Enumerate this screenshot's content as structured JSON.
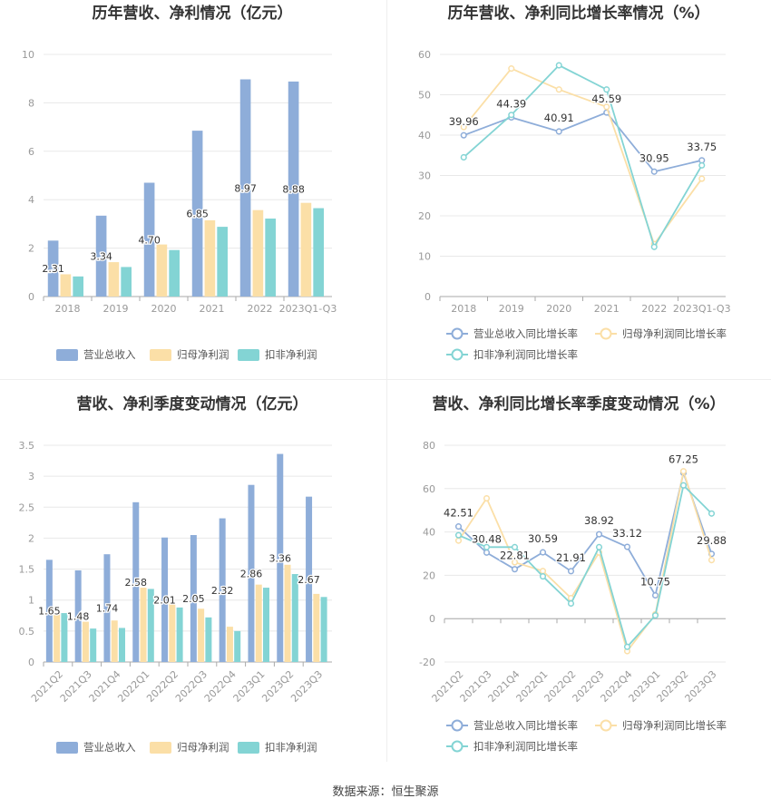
{
  "colors": {
    "revenue": "#8eadd9",
    "net_profit": "#fbdfa7",
    "deducted_profit": "#83d4d4",
    "grid": "#e8e8e8",
    "axis": "#999999",
    "text": "#333333"
  },
  "footer": "数据来源：恒生聚源",
  "chart_data": [
    {
      "type": "bar",
      "title": "历年营收、净利情况（亿元）",
      "categories": [
        "2018",
        "2019",
        "2020",
        "2021",
        "2022",
        "2023Q1-Q3"
      ],
      "ylim": [
        0,
        10
      ],
      "yticks": [
        0,
        2,
        4,
        6,
        8,
        10
      ],
      "series": [
        {
          "name": "营业总收入",
          "values": [
            2.31,
            3.34,
            4.7,
            6.85,
            8.97,
            8.88
          ],
          "show_labels": true
        },
        {
          "name": "归母净利润",
          "values": [
            0.92,
            1.42,
            2.15,
            3.15,
            3.57,
            3.87
          ],
          "show_labels": false
        },
        {
          "name": "扣非净利润",
          "values": [
            0.83,
            1.22,
            1.92,
            2.88,
            3.22,
            3.65
          ],
          "show_labels": false
        }
      ],
      "legend": "bottom"
    },
    {
      "type": "line",
      "title": "历年营收、净利同比增长率情况（%）",
      "categories": [
        "2018",
        "2019",
        "2020",
        "2021",
        "2022",
        "2023Q1-Q3"
      ],
      "ylim": [
        0,
        60
      ],
      "yticks": [
        0,
        10,
        20,
        30,
        40,
        50,
        60
      ],
      "series": [
        {
          "name": "营业总收入同比增长率",
          "values": [
            39.96,
            44.39,
            40.91,
            45.59,
            30.95,
            33.75
          ],
          "show_labels": true
        },
        {
          "name": "归母净利润同比增长率",
          "values": [
            42.0,
            56.5,
            51.3,
            47.0,
            13.0,
            29.2
          ],
          "show_labels": false
        },
        {
          "name": "扣非净利润同比增长率",
          "values": [
            34.5,
            45.0,
            57.3,
            51.3,
            12.3,
            32.5
          ],
          "show_labels": false
        }
      ],
      "legend": "bottom"
    },
    {
      "type": "bar",
      "title": "营收、净利季度变动情况（亿元）",
      "categories": [
        "2021Q2",
        "2021Q3",
        "2021Q4",
        "2022Q1",
        "2022Q2",
        "2022Q3",
        "2022Q4",
        "2023Q1",
        "2023Q2",
        "2023Q3"
      ],
      "ylim": [
        0,
        3.5
      ],
      "yticks": [
        0,
        0.5,
        1,
        1.5,
        2,
        2.5,
        3,
        3.5
      ],
      "series": [
        {
          "name": "营业总收入",
          "values": [
            1.65,
            1.48,
            1.74,
            2.58,
            2.01,
            2.05,
            2.32,
            2.86,
            3.36,
            2.67
          ],
          "show_labels": true
        },
        {
          "name": "归母净利润",
          "values": [
            0.8,
            0.65,
            0.67,
            1.2,
            0.95,
            0.86,
            0.57,
            1.25,
            1.57,
            1.1
          ],
          "show_labels": false
        },
        {
          "name": "扣非净利润",
          "values": [
            0.79,
            0.54,
            0.55,
            1.18,
            0.88,
            0.72,
            0.5,
            1.2,
            1.42,
            1.05
          ],
          "show_labels": false
        }
      ],
      "legend": "bottom"
    },
    {
      "type": "line",
      "title": "营收、净利同比增长率季度变动情况（%）",
      "categories": [
        "2021Q2",
        "2021Q3",
        "2021Q4",
        "2022Q1",
        "2022Q2",
        "2022Q3",
        "2022Q4",
        "2023Q1",
        "2023Q2",
        "2023Q3"
      ],
      "ylim": [
        -20,
        80
      ],
      "yticks": [
        -20,
        0,
        20,
        40,
        60,
        80
      ],
      "series": [
        {
          "name": "营业总收入同比增长率",
          "values": [
            42.51,
            30.48,
            22.81,
            30.59,
            21.91,
            38.92,
            33.12,
            10.75,
            67.25,
            29.88
          ],
          "show_labels": true
        },
        {
          "name": "归母净利润同比增长率",
          "values": [
            36.0,
            55.5,
            26.0,
            22.0,
            9.5,
            30.5,
            -15.0,
            2.0,
            68.0,
            27.0
          ],
          "show_labels": false
        },
        {
          "name": "扣非净利润同比增长率",
          "values": [
            38.5,
            33.0,
            33.0,
            19.5,
            7.0,
            33.0,
            -13.0,
            1.5,
            61.5,
            48.5
          ],
          "show_labels": false
        }
      ],
      "legend": "bottom"
    }
  ]
}
